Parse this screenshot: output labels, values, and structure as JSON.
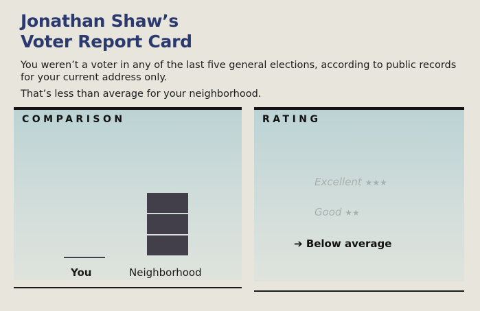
{
  "header": {
    "title_line1": "Jonathan Shaw’s",
    "title_line2": "Voter Report Card"
  },
  "message": {
    "line1": "You weren’t a voter in any of the last five general elections, according to public records for your current address only.",
    "line2": "That’s less than average for your neighborhood."
  },
  "comparison": {
    "title": "COMPARISON"
  },
  "chart_data": {
    "type": "bar",
    "categories": [
      "You",
      "Neighborhood"
    ],
    "values": [
      0,
      3
    ],
    "ylim": [
      0,
      5
    ],
    "colors": {
      "bar": "#433f4a"
    }
  },
  "rating": {
    "title": "RATING",
    "levels": [
      {
        "label": "Excellent",
        "stars": "★★★"
      },
      {
        "label": "Good",
        "stars": "★★"
      },
      {
        "label": "Below average",
        "stars": ""
      }
    ],
    "current": "Below average",
    "arrow_icon": "right-arrow-icon"
  }
}
